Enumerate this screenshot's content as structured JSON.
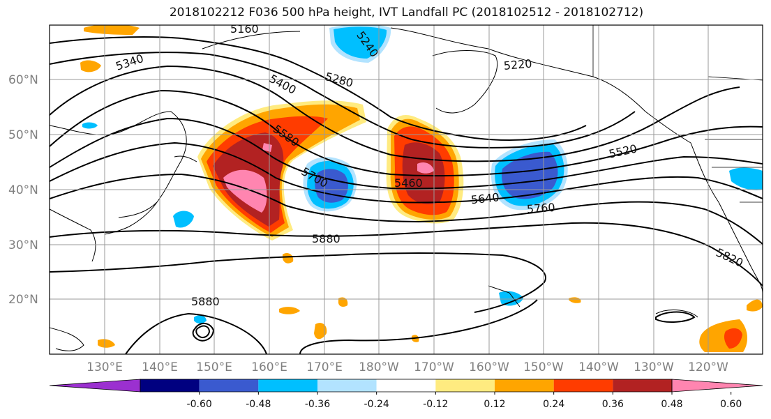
{
  "title": "2018102212 F036 500 hPa height, IVT Landfall PC (2018102512 - 2018102712)",
  "latitude_labels": [
    "60°N",
    "50°N",
    "40°N",
    "30°N",
    "20°N"
  ],
  "longitude_labels": [
    "130°E",
    "140°E",
    "150°E",
    "160°E",
    "170°E",
    "180°W",
    "170°W",
    "160°W",
    "150°W",
    "140°W",
    "130°W",
    "120°W"
  ],
  "contour_labels": [
    "5160",
    "5240",
    "5340",
    "5400",
    "5280",
    "5220",
    "5580",
    "5460",
    "5520",
    "5700",
    "5640",
    "5760",
    "5880",
    "5880",
    "5820"
  ],
  "colorbar": {
    "tick_labels": [
      "-0.60",
      "-0.48",
      "-0.36",
      "-0.24",
      "-0.12",
      "0.12",
      "0.24",
      "0.36",
      "0.48",
      "0.60"
    ],
    "colors": [
      "#9b30d0",
      "#000080",
      "#3a5acf",
      "#00bfff",
      "#b2e3ff",
      "#ffffff",
      "#ffeb80",
      "#ffa500",
      "#ff3c00",
      "#b22222",
      "#ff85b0"
    ]
  }
}
